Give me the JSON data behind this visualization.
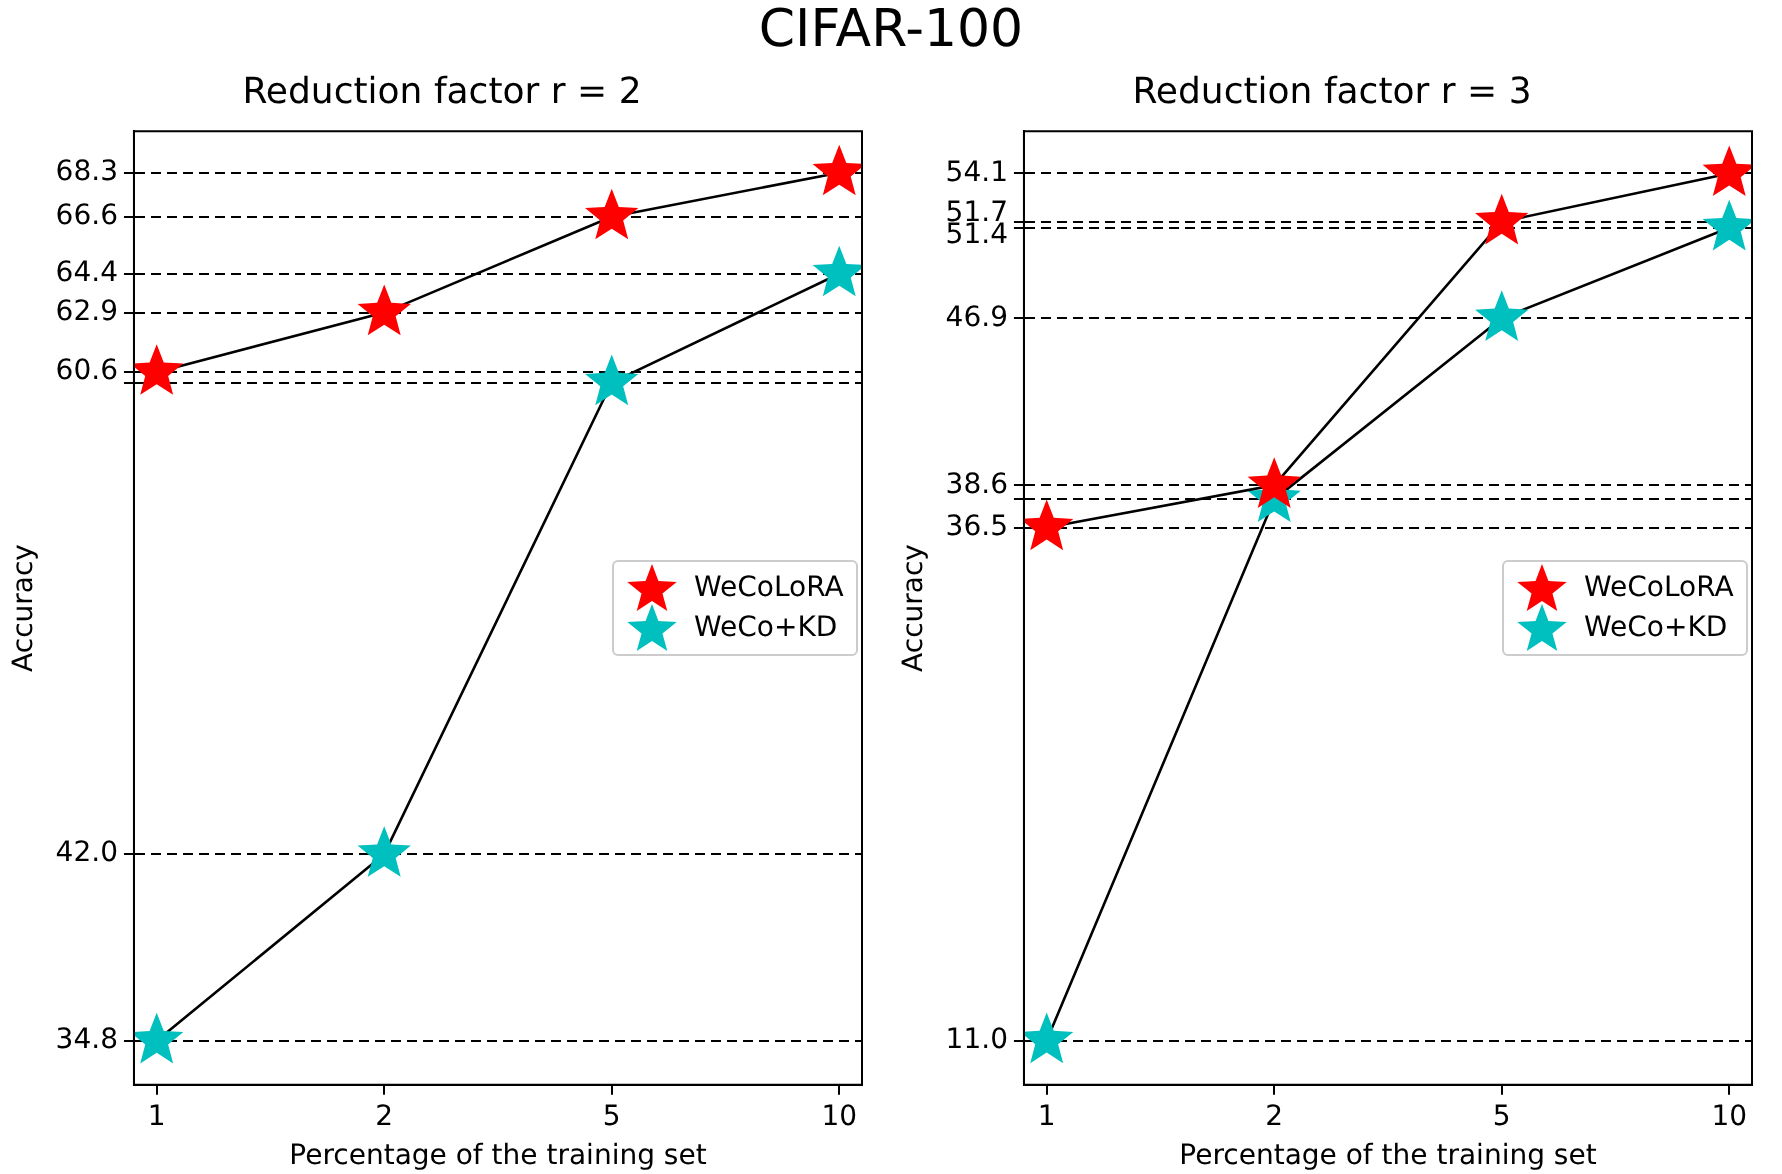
{
  "chart_data": [
    {
      "type": "line",
      "title": "Reduction factor r = 2",
      "xlabel": "Percentage of the training set",
      "ylabel": "Accuracy",
      "annotations": [
        "CIFAR-100"
      ],
      "categories": [
        "1",
        "2",
        "5",
        "10"
      ],
      "series": [
        {
          "name": "WeCoLoRA",
          "color": "#ff0000",
          "values": [
            60.6,
            62.9,
            66.6,
            68.3
          ]
        },
        {
          "name": "WeCo+KD",
          "color": "#00bfbf",
          "values": [
            34.8,
            42.0,
            60.2,
            64.4
          ]
        }
      ],
      "ylim": [
        33.1,
        69.9
      ],
      "yticks": [
        {
          "value": 34.8,
          "label": "34.8"
        },
        {
          "value": 42,
          "label": "42.0"
        },
        {
          "value": 60.2,
          "label": null
        },
        60.6,
        62.9,
        64.4,
        66.6,
        68.3
      ],
      "grid": "y",
      "legend": "center right",
      "marker": "star",
      "line_style": "solid"
    },
    {
      "type": "line",
      "title": "Reduction factor r = 3",
      "xlabel": "Percentage of the training set",
      "ylabel": "Accuracy",
      "categories": [
        "1",
        "2",
        "5",
        "10"
      ],
      "series": [
        {
          "name": "WeCoLoRA",
          "color": "#ff0000",
          "values": [
            36.5,
            38.6,
            51.7,
            54.1
          ]
        },
        {
          "name": "WeCo+KD",
          "color": "#00bfbf",
          "values": [
            11.0,
            37.9,
            46.9,
            51.4
          ]
        }
      ],
      "ylim": [
        8.8,
        56.2
      ],
      "yticks": [
        {
          "value": 11,
          "label": "11.0"
        },
        36.5,
        {
          "value": 37.9,
          "label": null
        },
        38.6,
        46.9,
        51.4,
        51.7,
        54.1
      ],
      "grid": "y",
      "legend": "center right",
      "marker": "star",
      "line_style": "solid"
    }
  ]
}
